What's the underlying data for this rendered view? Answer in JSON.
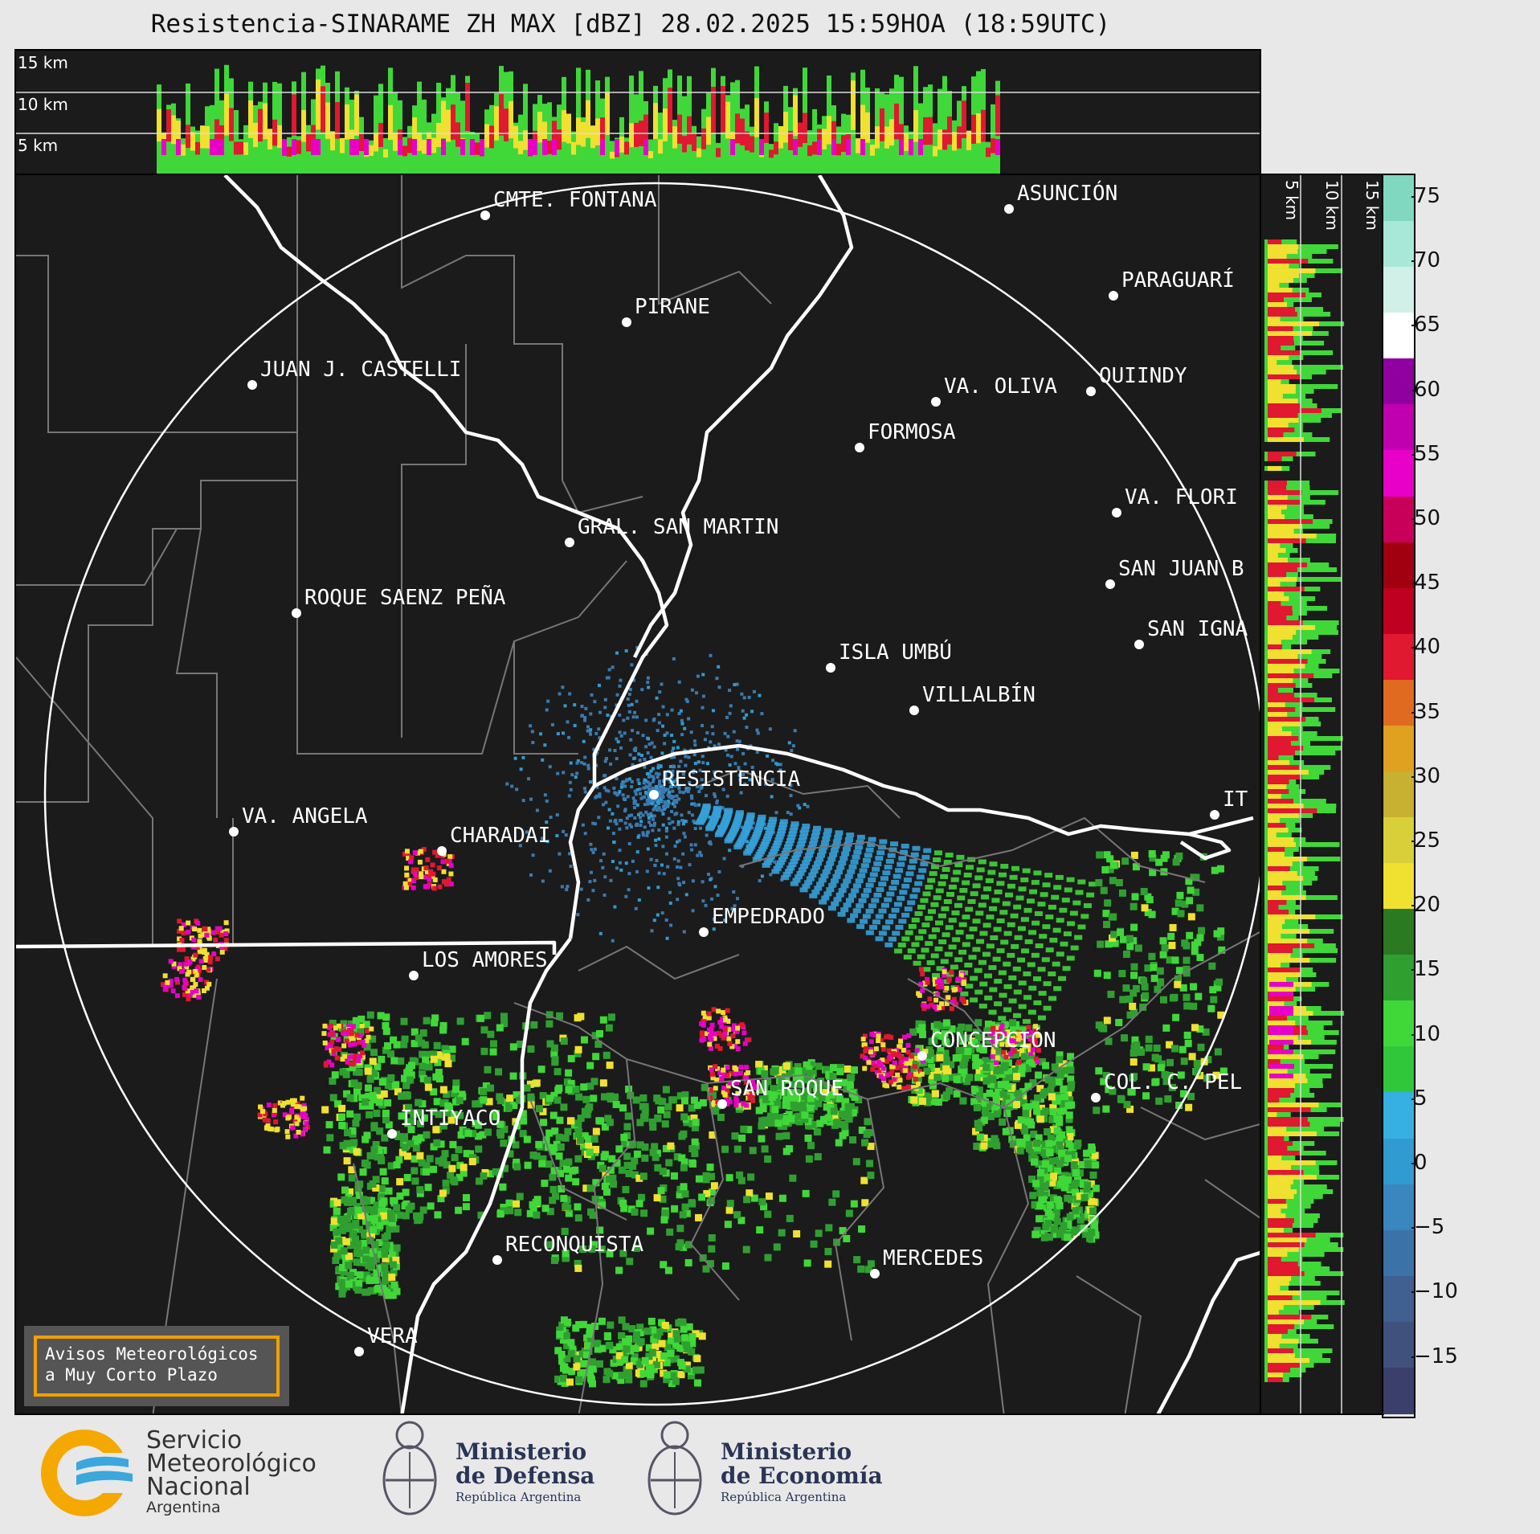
{
  "title": "Resistencia-SINARAME ZH MAX [dBZ] 28.02.2025 15:59HOA (18:59UTC)",
  "top_panel": {
    "height_labels": [
      "15 km",
      "10 km",
      "5 km"
    ]
  },
  "right_panel": {
    "height_labels": [
      "5 km",
      "10 km",
      "15 km"
    ]
  },
  "colorbar": {
    "ticks": [
      "75",
      "70",
      "65",
      "60",
      "55",
      "50",
      "45",
      "40",
      "35",
      "30",
      "25",
      "20",
      "15",
      "10",
      "5",
      "0",
      "−5",
      "−10",
      "−15"
    ],
    "unit": "dBZ",
    "colors": [
      "#3a3f6b",
      "#41517d",
      "#3f6090",
      "#3b72a8",
      "#3a86be",
      "#2f9bd0",
      "#35b0e0",
      "#30c83a",
      "#3fd838",
      "#2fa030",
      "#2a7a22",
      "#f0e030",
      "#d8d038",
      "#c8b030",
      "#e0a020",
      "#e06a20",
      "#e01830",
      "#c00020",
      "#a00010",
      "#c8005a",
      "#e800c8",
      "#c000b0",
      "#9000a0",
      "#ffffff",
      "#d0f0e8",
      "#a8e8d8",
      "#80d8c0"
    ]
  },
  "cities": [
    {
      "name": "CMTE. FONTANA"
    },
    {
      "name": "ASUNCIÓN"
    },
    {
      "name": "PARAGUARÍ"
    },
    {
      "name": "PIRANE"
    },
    {
      "name": "JUAN J. CASTELLI"
    },
    {
      "name": "VA. OLIVA"
    },
    {
      "name": "QUIINDY"
    },
    {
      "name": "FORMOSA"
    },
    {
      "name": "VA. FLORI"
    },
    {
      "name": "GRAL. SAN MARTIN"
    },
    {
      "name": "SAN JUAN B"
    },
    {
      "name": "ROQUE SAENZ PEÑA"
    },
    {
      "name": "SAN IGNA"
    },
    {
      "name": "ISLA UMBÚ"
    },
    {
      "name": "VILLALBÍN"
    },
    {
      "name": "RESISTENCIA"
    },
    {
      "name": "VA. ANGELA"
    },
    {
      "name": "CHARADAI"
    },
    {
      "name": "IT"
    },
    {
      "name": "EMPEDRADO"
    },
    {
      "name": "LOS AMORES"
    },
    {
      "name": "CONCEPCIÓN"
    },
    {
      "name": "SAN ROQUE"
    },
    {
      "name": "COL. C. PEL"
    },
    {
      "name": "INTIYACO"
    },
    {
      "name": "RECONQUISTA"
    },
    {
      "name": "MERCEDES"
    },
    {
      "name": "VERA"
    }
  ],
  "aviso": {
    "line1": "Avisos Meteorológicos",
    "line2": "a Muy Corto Plazo"
  },
  "logos": {
    "smn": {
      "line1": "Servicio",
      "line2": "Meteorológico",
      "line3": "Nacional",
      "line4": "Argentina"
    },
    "defensa": {
      "line1": "Ministerio",
      "line2": "de Defensa",
      "line3": "República Argentina"
    },
    "economia": {
      "line1": "Ministerio",
      "line2": "de Economía",
      "line3": "República Argentina"
    }
  }
}
